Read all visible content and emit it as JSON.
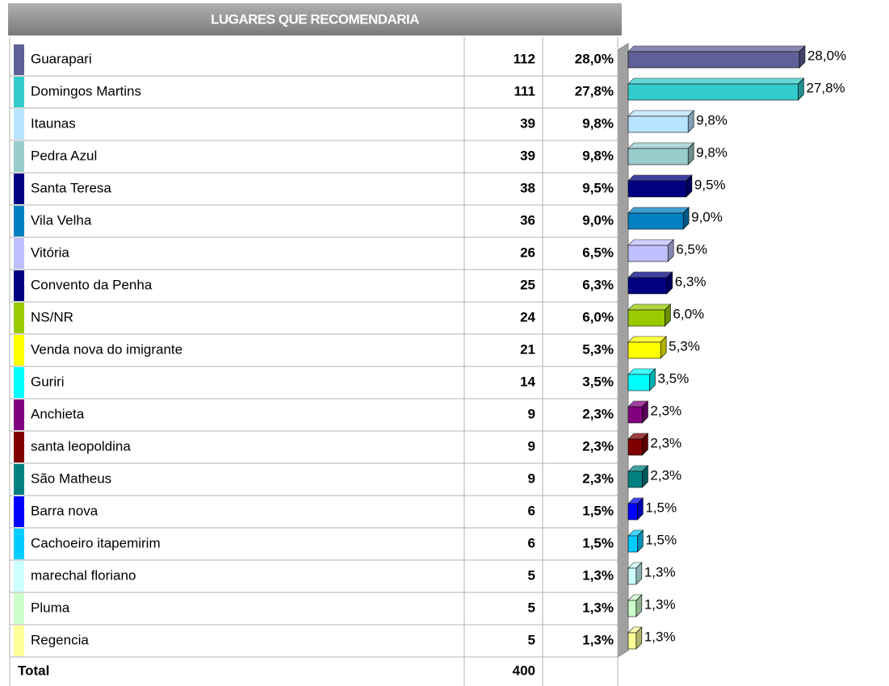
{
  "table": {
    "title": "LUGARES QUE RECOMENDARIA",
    "rows": [
      {
        "name": "Guarapari",
        "count": 112,
        "percent": 28.0,
        "percent_label": "28,0%",
        "color": "#606098"
      },
      {
        "name": "Domingos Martins",
        "count": 111,
        "percent": 27.8,
        "percent_label": "27,8%",
        "color": "#33cccc"
      },
      {
        "name": "Itaunas",
        "count": 39,
        "percent": 9.8,
        "percent_label": "9,8%",
        "color": "#b8e4ff"
      },
      {
        "name": "Pedra Azul",
        "count": 39,
        "percent": 9.8,
        "percent_label": "9,8%",
        "color": "#99cccc"
      },
      {
        "name": "Santa Teresa",
        "count": 38,
        "percent": 9.5,
        "percent_label": "9,5%",
        "color": "#000080"
      },
      {
        "name": "Vila Velha",
        "count": 36,
        "percent": 9.0,
        "percent_label": "9,0%",
        "color": "#0080c0"
      },
      {
        "name": "Vitória",
        "count": 26,
        "percent": 6.5,
        "percent_label": "6,5%",
        "color": "#c0c0ff"
      },
      {
        "name": "Convento da Penha",
        "count": 25,
        "percent": 6.3,
        "percent_label": "6,3%",
        "color": "#000080"
      },
      {
        "name": "NS/NR",
        "count": 24,
        "percent": 6.0,
        "percent_label": "6,0%",
        "color": "#99cc00"
      },
      {
        "name": "Venda nova do imigrante",
        "count": 21,
        "percent": 5.3,
        "percent_label": "5,3%",
        "color": "#ffff00"
      },
      {
        "name": "Guriri",
        "count": 14,
        "percent": 3.5,
        "percent_label": "3,5%",
        "color": "#00ffff"
      },
      {
        "name": "Anchieta",
        "count": 9,
        "percent": 2.3,
        "percent_label": "2,3%",
        "color": "#800080"
      },
      {
        "name": "santa leopoldina",
        "count": 9,
        "percent": 2.3,
        "percent_label": "2,3%",
        "color": "#800000"
      },
      {
        "name": "São Matheus",
        "count": 9,
        "percent": 2.3,
        "percent_label": "2,3%",
        "color": "#008080"
      },
      {
        "name": "Barra nova",
        "count": 6,
        "percent": 1.5,
        "percent_label": "1,5%",
        "color": "#0000ff"
      },
      {
        "name": "Cachoeiro itapemirim",
        "count": 6,
        "percent": 1.5,
        "percent_label": "1,5%",
        "color": "#00ccff"
      },
      {
        "name": "marechal floriano",
        "count": 5,
        "percent": 1.3,
        "percent_label": "1,3%",
        "color": "#ccffff"
      },
      {
        "name": "Pluma",
        "count": 5,
        "percent": 1.3,
        "percent_label": "1,3%",
        "color": "#ccffcc"
      },
      {
        "name": "Regencia",
        "count": 5,
        "percent": 1.3,
        "percent_label": "1,3%",
        "color": "#ffff99"
      }
    ],
    "total_label": "Total",
    "total": 400
  }
}
